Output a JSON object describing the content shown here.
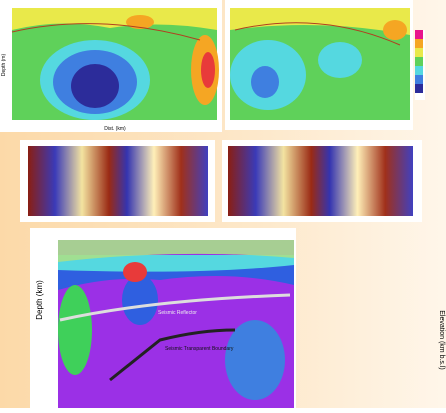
{
  "top": {
    "x_label": "Dist. (km)",
    "y_label": "Depth (m)"
  },
  "bottom": {
    "y_label": "Depth (km)",
    "reflector_label": "Seismic Reflector",
    "boundary_label": "Seismic Transparent Boundary"
  },
  "side_label": "Elevation (km b.s.l)"
}
